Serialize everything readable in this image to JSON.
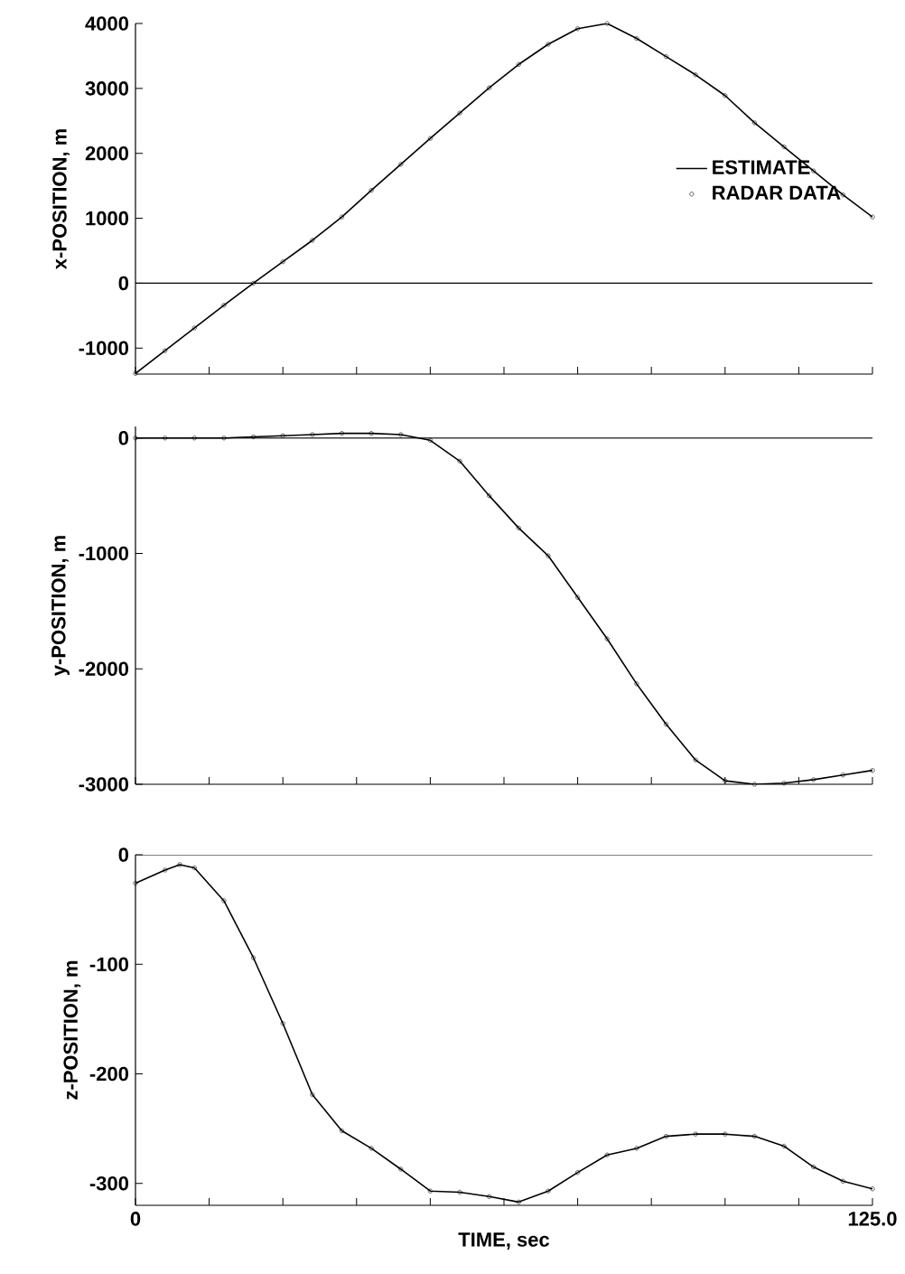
{
  "chart_data": [
    {
      "type": "line",
      "ylabel": "x-POSITION, m",
      "x": [
        0,
        5,
        10,
        15,
        20,
        25,
        30,
        35,
        40,
        45,
        50,
        55,
        60,
        65,
        70,
        75,
        80,
        85,
        90,
        95,
        100,
        105,
        110,
        115,
        120,
        125
      ],
      "xlim": [
        0,
        125
      ],
      "xticks": [
        {
          "value": 0,
          "label": null
        },
        {
          "value": 12.5,
          "label": null
        },
        {
          "value": 25,
          "label": null
        },
        {
          "value": 37.5,
          "label": null
        },
        {
          "value": 50,
          "label": null
        },
        {
          "value": 62.5,
          "label": null
        },
        {
          "value": 75,
          "label": null
        },
        {
          "value": 87.5,
          "label": null
        },
        {
          "value": 100,
          "label": null
        },
        {
          "value": 112.5,
          "label": null
        },
        {
          "value": 125,
          "label": null
        }
      ],
      "ylim": [
        -1400,
        4000
      ],
      "yticks": [
        -1000,
        0,
        1000,
        2000,
        3000,
        4000
      ],
      "tick_labels": "y",
      "legend": "right",
      "ref_lines": [
        {
          "axis": "y",
          "value": 0
        }
      ],
      "series": [
        {
          "name": "ESTIMATE",
          "type": "line",
          "color": "#000000",
          "values": [
            -1390,
            -1040,
            -690,
            -340,
            0,
            330,
            660,
            1020,
            1430,
            1830,
            2230,
            2620,
            3010,
            3370,
            3680,
            3920,
            4000,
            3770,
            3490,
            3210,
            2890,
            2470,
            2100,
            1730,
            1360,
            1020
          ]
        },
        {
          "name": "RADAR DATA",
          "type": "scatter",
          "marker": "circle",
          "color": "#000000",
          "values": [
            -1390,
            -1040,
            -690,
            -340,
            0,
            330,
            660,
            1020,
            1430,
            1830,
            2230,
            2620,
            3010,
            3370,
            3680,
            3920,
            4000,
            3770,
            3490,
            3210,
            2890,
            2470,
            2100,
            1730,
            1360,
            1020
          ]
        }
      ]
    },
    {
      "type": "line",
      "ylabel": "y-POSITION, m",
      "x": [
        0,
        5,
        10,
        15,
        20,
        25,
        30,
        35,
        40,
        45,
        50,
        55,
        60,
        65,
        70,
        75,
        80,
        85,
        90,
        95,
        100,
        105,
        110,
        115,
        120,
        125
      ],
      "xlim": [
        0,
        125
      ],
      "xticks": [
        {
          "value": 0,
          "label": null
        },
        {
          "value": 12.5,
          "label": null
        },
        {
          "value": 25,
          "label": null
        },
        {
          "value": 37.5,
          "label": null
        },
        {
          "value": 50,
          "label": null
        },
        {
          "value": 62.5,
          "label": null
        },
        {
          "value": 75,
          "label": null
        },
        {
          "value": 87.5,
          "label": null
        },
        {
          "value": 100,
          "label": null
        },
        {
          "value": 112.5,
          "label": null
        },
        {
          "value": 125,
          "label": null
        }
      ],
      "ylim": [
        -3000,
        100
      ],
      "yticks": [
        -3000,
        -2000,
        -1000,
        0
      ],
      "tick_labels": "y",
      "ref_lines": [
        {
          "axis": "y",
          "value": 0
        }
      ],
      "series": [
        {
          "type": "line",
          "color": "#000000",
          "values": [
            0,
            0,
            0,
            0,
            10,
            20,
            30,
            40,
            40,
            30,
            -20,
            -200,
            -500,
            -780,
            -1020,
            -1380,
            -1740,
            -2130,
            -2480,
            -2790,
            -2970,
            -3000,
            -2990,
            -2960,
            -2920,
            -2880
          ]
        },
        {
          "type": "scatter",
          "marker": "circle",
          "color": "#000000",
          "values": [
            0,
            0,
            0,
            0,
            10,
            20,
            30,
            40,
            40,
            30,
            -20,
            -200,
            -500,
            -780,
            -1020,
            -1380,
            -1740,
            -2130,
            -2480,
            -2790,
            -2970,
            -3000,
            -2990,
            -2960,
            -2920,
            -2880
          ]
        }
      ]
    },
    {
      "type": "line",
      "ylabel": "z-POSITION, m",
      "xlabel": "TIME, sec",
      "x": [
        0,
        5,
        7.5,
        10,
        15,
        20,
        25,
        30,
        35,
        40,
        45,
        50,
        55,
        60,
        65,
        70,
        75,
        80,
        85,
        90,
        95,
        100,
        105,
        110,
        115,
        120,
        125
      ],
      "xlim": [
        0,
        125
      ],
      "xticks": [
        {
          "value": 0,
          "label": "0"
        },
        {
          "value": 12.5,
          "label": null
        },
        {
          "value": 25,
          "label": null
        },
        {
          "value": 37.5,
          "label": null
        },
        {
          "value": 50,
          "label": null
        },
        {
          "value": 62.5,
          "label": null
        },
        {
          "value": 75,
          "label": null
        },
        {
          "value": 87.5,
          "label": null
        },
        {
          "value": 100,
          "label": null
        },
        {
          "value": 112.5,
          "label": null
        },
        {
          "value": 125,
          "label": "125.0"
        }
      ],
      "ylim": [
        -320,
        0
      ],
      "yticks": [
        -300,
        -200,
        -100,
        0
      ],
      "ref_lines": [
        {
          "axis": "y",
          "value": 0
        }
      ],
      "series": [
        {
          "type": "line",
          "color": "#000000",
          "values": [
            -26,
            -14,
            -9,
            -12,
            -42,
            -94,
            -154,
            -219,
            -252,
            -268,
            -287,
            -307,
            -308,
            -312,
            -317,
            -307,
            -290,
            -274,
            -268,
            -257,
            -255,
            -255,
            -257,
            -266,
            -285,
            -298,
            -305
          ]
        },
        {
          "type": "scatter",
          "marker": "circle",
          "color": "#000000",
          "values": [
            -26,
            -14,
            -9,
            -12,
            -42,
            -94,
            -154,
            -219,
            -252,
            -268,
            -287,
            -307,
            -308,
            -312,
            -317,
            -307,
            -290,
            -274,
            -268,
            -257,
            -255,
            -255,
            -257,
            -266,
            -285,
            -298,
            -305
          ]
        }
      ]
    }
  ]
}
